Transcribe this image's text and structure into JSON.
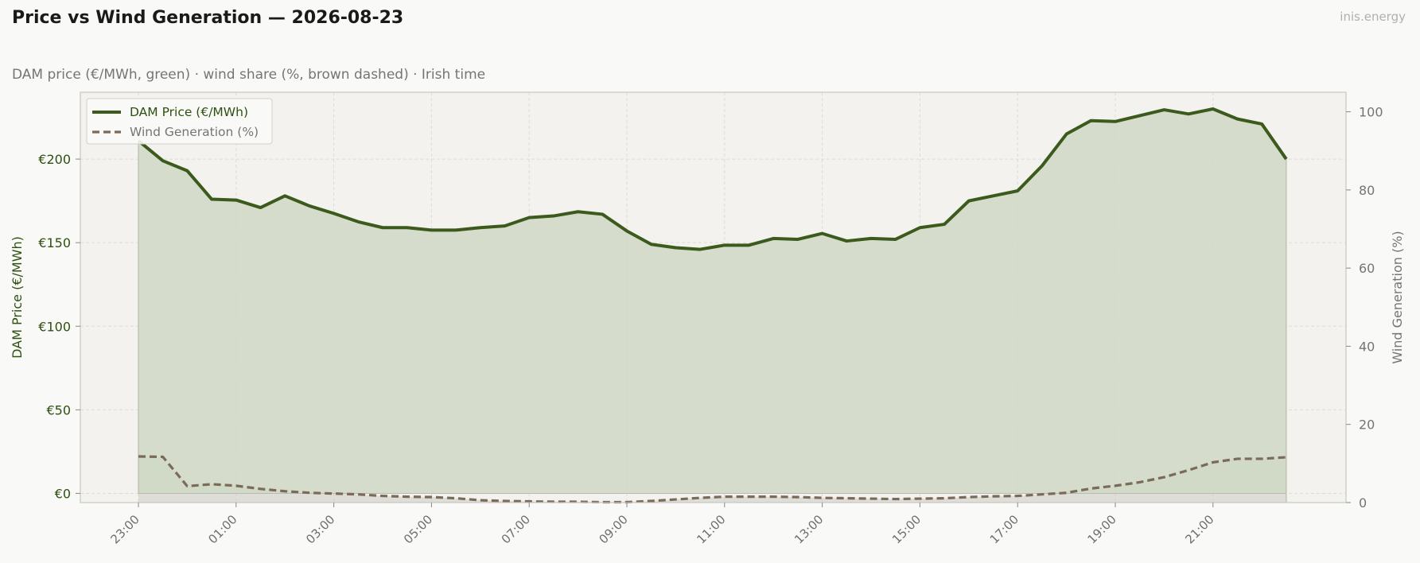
{
  "header": {
    "title": "Price vs Wind Generation — 2026-08-23",
    "brand": "inis.energy",
    "subtitle": "DAM price (€/MWh, green)  ·  wind share (%, brown dashed)  ·  Irish time"
  },
  "colors": {
    "price": "#3b5a1c",
    "price_fill": "#cfd8c4",
    "wind": "#7a6a5a",
    "wind_fill": "#c7c4bc",
    "plot_bg": "#f3f2ee",
    "left_axis_text": "#2e5010",
    "right_axis_text": "#757575"
  },
  "chart_data": {
    "type": "line",
    "title": "Price vs Wind Generation — 2026-08-23",
    "xlabel": "",
    "ylabel_left": "DAM Price (€/MWh)",
    "ylabel_right": "Wind Generation (%)",
    "x_tick_labels": [
      "23:00",
      "01:00",
      "03:00",
      "05:00",
      "07:00",
      "09:00",
      "11:00",
      "13:00",
      "15:00",
      "17:00",
      "19:00",
      "21:00"
    ],
    "y_left_ticks": [
      "€0",
      "€50",
      "€100",
      "€150",
      "€200"
    ],
    "y_right_ticks": [
      "0",
      "20",
      "40",
      "60",
      "80",
      "100"
    ],
    "y_left_lim": [
      -5.5,
      240
    ],
    "y_right_lim": [
      0,
      105
    ],
    "grid": true,
    "legend_position": "top-left",
    "x_time": [
      "23:00",
      "23:30",
      "00:00",
      "00:30",
      "01:00",
      "01:30",
      "02:00",
      "02:30",
      "03:00",
      "03:30",
      "04:00",
      "04:30",
      "05:00",
      "05:30",
      "06:00",
      "06:30",
      "07:00",
      "07:30",
      "08:00",
      "08:30",
      "09:00",
      "09:30",
      "10:00",
      "10:30",
      "11:00",
      "11:30",
      "12:00",
      "12:30",
      "13:00",
      "13:30",
      "14:00",
      "14:30",
      "15:00",
      "15:30",
      "16:00",
      "16:30",
      "17:00",
      "17:30",
      "18:00",
      "18:30",
      "19:00",
      "19:30",
      "20:00",
      "20:30",
      "21:00",
      "21:30",
      "22:00",
      "22:30"
    ],
    "series": [
      {
        "name": "DAM Price (€/MWh)",
        "axis": "left",
        "style": "solid",
        "values": [
          211,
          199,
          193,
          176,
          175.5,
          171,
          178,
          172,
          167.5,
          162.5,
          159,
          159,
          157.5,
          157.5,
          159,
          160,
          165,
          166,
          168.5,
          167,
          157,
          149,
          147,
          146,
          148.5,
          148.5,
          152.5,
          152,
          155.5,
          151,
          152.5,
          152,
          159,
          161,
          175,
          178,
          181,
          196,
          215,
          223,
          222.5,
          226,
          229.5,
          227,
          230,
          224,
          221,
          200
        ]
      },
      {
        "name": "Wind Generation (%)",
        "axis": "right",
        "style": "dashed",
        "values": [
          11.8,
          11.7,
          4.2,
          4.7,
          4.3,
          3.5,
          2.9,
          2.5,
          2.3,
          2.1,
          1.7,
          1.5,
          1.4,
          1.1,
          0.6,
          0.4,
          0.3,
          0.2,
          0.2,
          0.1,
          0.1,
          0.4,
          0.8,
          1.2,
          1.5,
          1.5,
          1.5,
          1.4,
          1.2,
          1.1,
          1.0,
          0.9,
          1.0,
          1.1,
          1.4,
          1.6,
          1.7,
          2.1,
          2.5,
          3.6,
          4.3,
          5.2,
          6.5,
          8.3,
          10.3,
          11.2,
          11.2,
          11.6
        ]
      }
    ]
  }
}
